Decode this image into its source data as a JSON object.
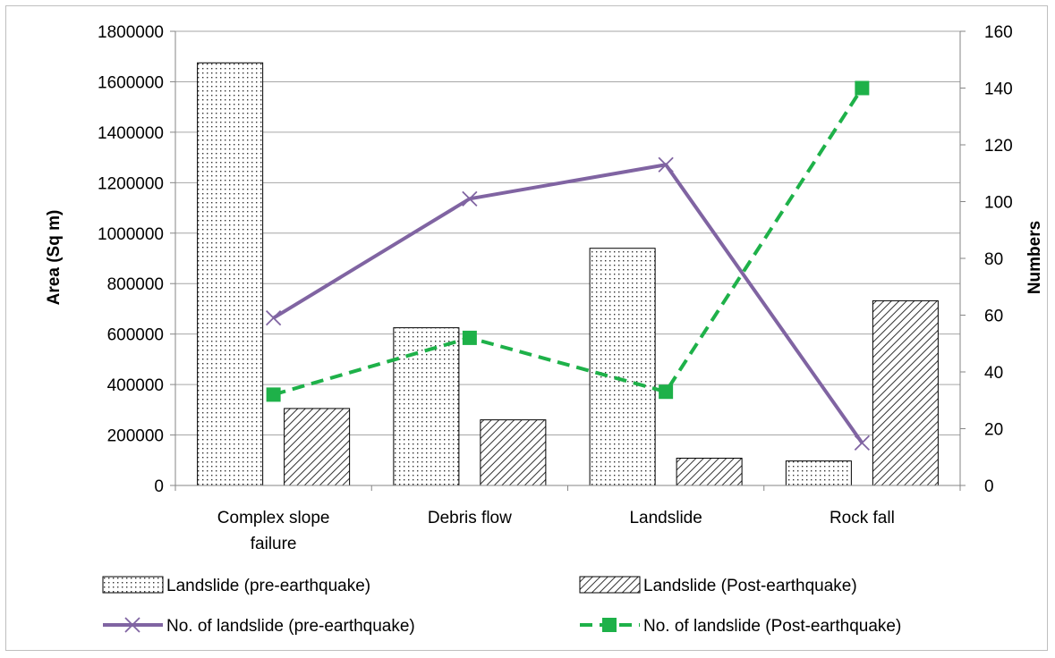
{
  "chart_data": {
    "type": "bar",
    "categories": [
      [
        "Complex slope",
        "failure"
      ],
      [
        "Debris flow"
      ],
      [
        "Landslide"
      ],
      [
        "Rock fall"
      ]
    ],
    "bar_series": [
      {
        "name": "Landslide (pre-earthquake)",
        "values": [
          1675000,
          625000,
          940000,
          97000
        ],
        "pattern": "dots"
      },
      {
        "name": "Landslide (Post-earthquake)",
        "values": [
          305000,
          260000,
          108000,
          732000
        ],
        "pattern": "hatch"
      }
    ],
    "line_series": [
      {
        "name": "No. of landslide (pre-earthquake)",
        "values": [
          59,
          101,
          113,
          15
        ],
        "color": "#8064a2",
        "marker": "x",
        "dashed": false
      },
      {
        "name": "No. of landslide (Post-earthquake)",
        "values": [
          32,
          52,
          33,
          140
        ],
        "color": "#1eb149",
        "marker": "square",
        "dashed": true
      }
    ],
    "ylabel": "Area (Sq m)",
    "y2label": "Numbers",
    "ylim": [
      0,
      1800000
    ],
    "y2lim": [
      0,
      160
    ],
    "yticks": [
      "0",
      "200000",
      "400000",
      "600000",
      "800000",
      "1000000",
      "1200000",
      "1400000",
      "1600000",
      "1800000"
    ],
    "y2ticks": [
      "0",
      "20",
      "40",
      "60",
      "80",
      "100",
      "120",
      "140",
      "160"
    ],
    "grid": true,
    "legend_position": "bottom"
  }
}
